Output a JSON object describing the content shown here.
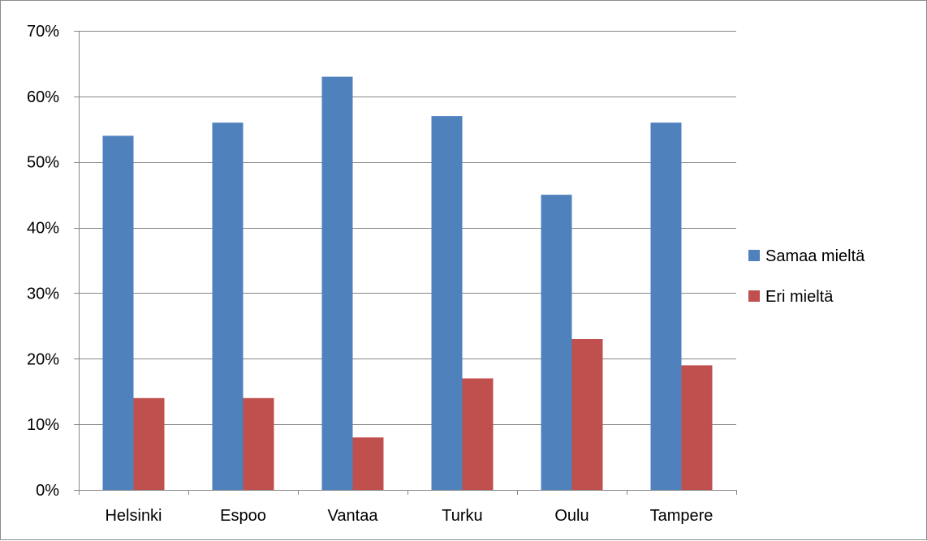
{
  "chart_data": {
    "type": "bar",
    "categories": [
      "Helsinki",
      "Espoo",
      "Vantaa",
      "Turku",
      "Oulu",
      "Tampere"
    ],
    "series": [
      {
        "name": "Samaa mieltä",
        "color": "#4f81bd",
        "values": [
          54,
          56,
          63,
          57,
          45,
          56
        ]
      },
      {
        "name": "Eri mieltä",
        "color": "#c0504d",
        "values": [
          14,
          14,
          8,
          17,
          23,
          19
        ]
      }
    ],
    "title": "",
    "xlabel": "",
    "ylabel": "",
    "ylim": [
      0,
      70
    ],
    "y_ticks": [
      "0%",
      "10%",
      "20%",
      "30%",
      "40%",
      "50%",
      "60%",
      "70%"
    ],
    "grid": true,
    "legend_position": "right"
  }
}
